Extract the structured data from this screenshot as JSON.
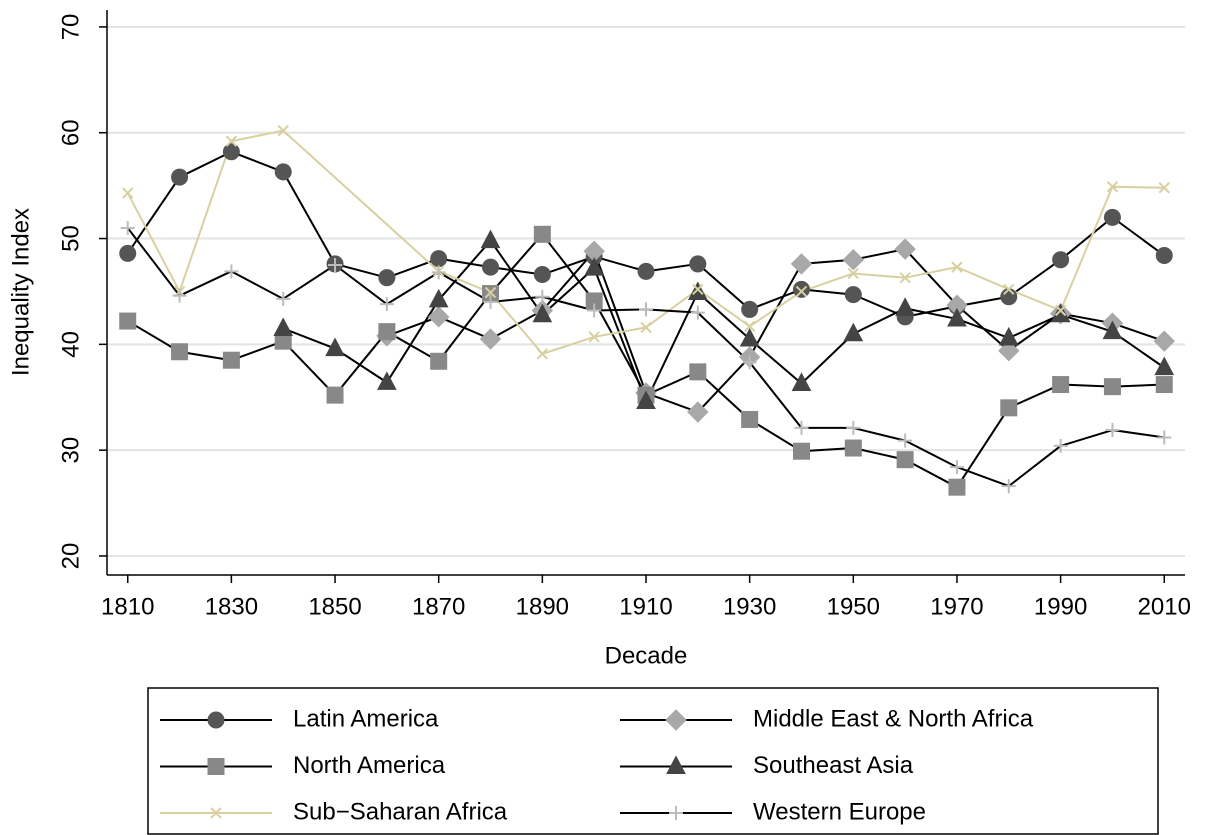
{
  "chart_data": {
    "type": "line",
    "x": [
      1810,
      1820,
      1830,
      1840,
      1850,
      1860,
      1870,
      1880,
      1890,
      1900,
      1910,
      1920,
      1930,
      1940,
      1950,
      1960,
      1970,
      1980,
      1990,
      2000,
      2010
    ],
    "x_label": "Decade",
    "y_label": "Inequality Index",
    "xlim": [
      1806,
      2014
    ],
    "ylim": [
      18.2,
      71.6
    ],
    "xticks": [
      1810,
      1830,
      1850,
      1870,
      1890,
      1910,
      1930,
      1950,
      1970,
      1990,
      2010
    ],
    "yticks": [
      20,
      30,
      40,
      50,
      60,
      70
    ],
    "grid": true,
    "series": [
      {
        "name": "Latin America",
        "color": "#000000",
        "marker": "circle",
        "marker_color": "#555555",
        "values": [
          48.6,
          55.8,
          58.2,
          56.3,
          47.6,
          46.3,
          48.1,
          47.3,
          46.6,
          48.3,
          46.9,
          47.6,
          43.3,
          45.2,
          44.7,
          42.6,
          43.6,
          44.5,
          48.0,
          52.0,
          48.4
        ]
      },
      {
        "name": "Middle East & North Africa",
        "color": "#000000",
        "marker": "diamond",
        "marker_color": "#a8a8a8",
        "values": [
          null,
          null,
          null,
          null,
          null,
          40.8,
          42.6,
          40.5,
          43.2,
          48.8,
          35.4,
          33.6,
          38.8,
          47.6,
          48.0,
          49.0,
          43.7,
          39.4,
          42.9,
          42.0,
          40.3
        ]
      },
      {
        "name": "North America",
        "color": "#000000",
        "marker": "square",
        "marker_color": "#888888",
        "values": [
          42.2,
          39.3,
          38.5,
          40.3,
          35.2,
          41.2,
          38.4,
          44.8,
          50.4,
          44.1,
          35.2,
          37.4,
          32.9,
          29.9,
          30.2,
          29.1,
          26.5,
          34.0,
          36.2,
          36.0,
          36.2
        ]
      },
      {
        "name": "Southeast Asia",
        "color": "#000000",
        "marker": "triangle",
        "marker_color": "#444444",
        "values": [
          null,
          null,
          null,
          41.5,
          39.6,
          36.4,
          44.2,
          49.8,
          42.8,
          47.2,
          34.6,
          44.9,
          40.5,
          36.3,
          41.0,
          43.4,
          42.4,
          40.6,
          42.8,
          41.2,
          37.8
        ]
      },
      {
        "name": "Sub−Saharan Africa",
        "color": "#d8d0a0",
        "marker": "x",
        "marker_color": "#d8d0a0",
        "x": [
          1810,
          1820,
          1830,
          1840,
          1870,
          1880,
          1890,
          1900,
          1910,
          1920,
          1930,
          1940,
          1950,
          1960,
          1970,
          1980,
          1990,
          2000,
          2010
        ],
        "values": [
          54.3,
          45.0,
          59.2,
          60.2,
          46.9,
          44.9,
          39.1,
          40.7,
          41.6,
          45.2,
          41.7,
          45.0,
          46.7,
          46.3,
          47.3,
          45.2,
          43.2,
          54.9,
          54.8
        ]
      },
      {
        "name": "Western Europe",
        "color": "#000000",
        "marker": "plus",
        "marker_color": "#bbbbbb",
        "values": [
          51.0,
          44.6,
          46.9,
          44.3,
          47.5,
          43.8,
          46.8,
          44.0,
          44.5,
          43.2,
          43.3,
          43.0,
          38.3,
          32.1,
          32.1,
          30.9,
          28.4,
          26.6,
          30.4,
          31.9,
          31.2
        ]
      }
    ]
  }
}
